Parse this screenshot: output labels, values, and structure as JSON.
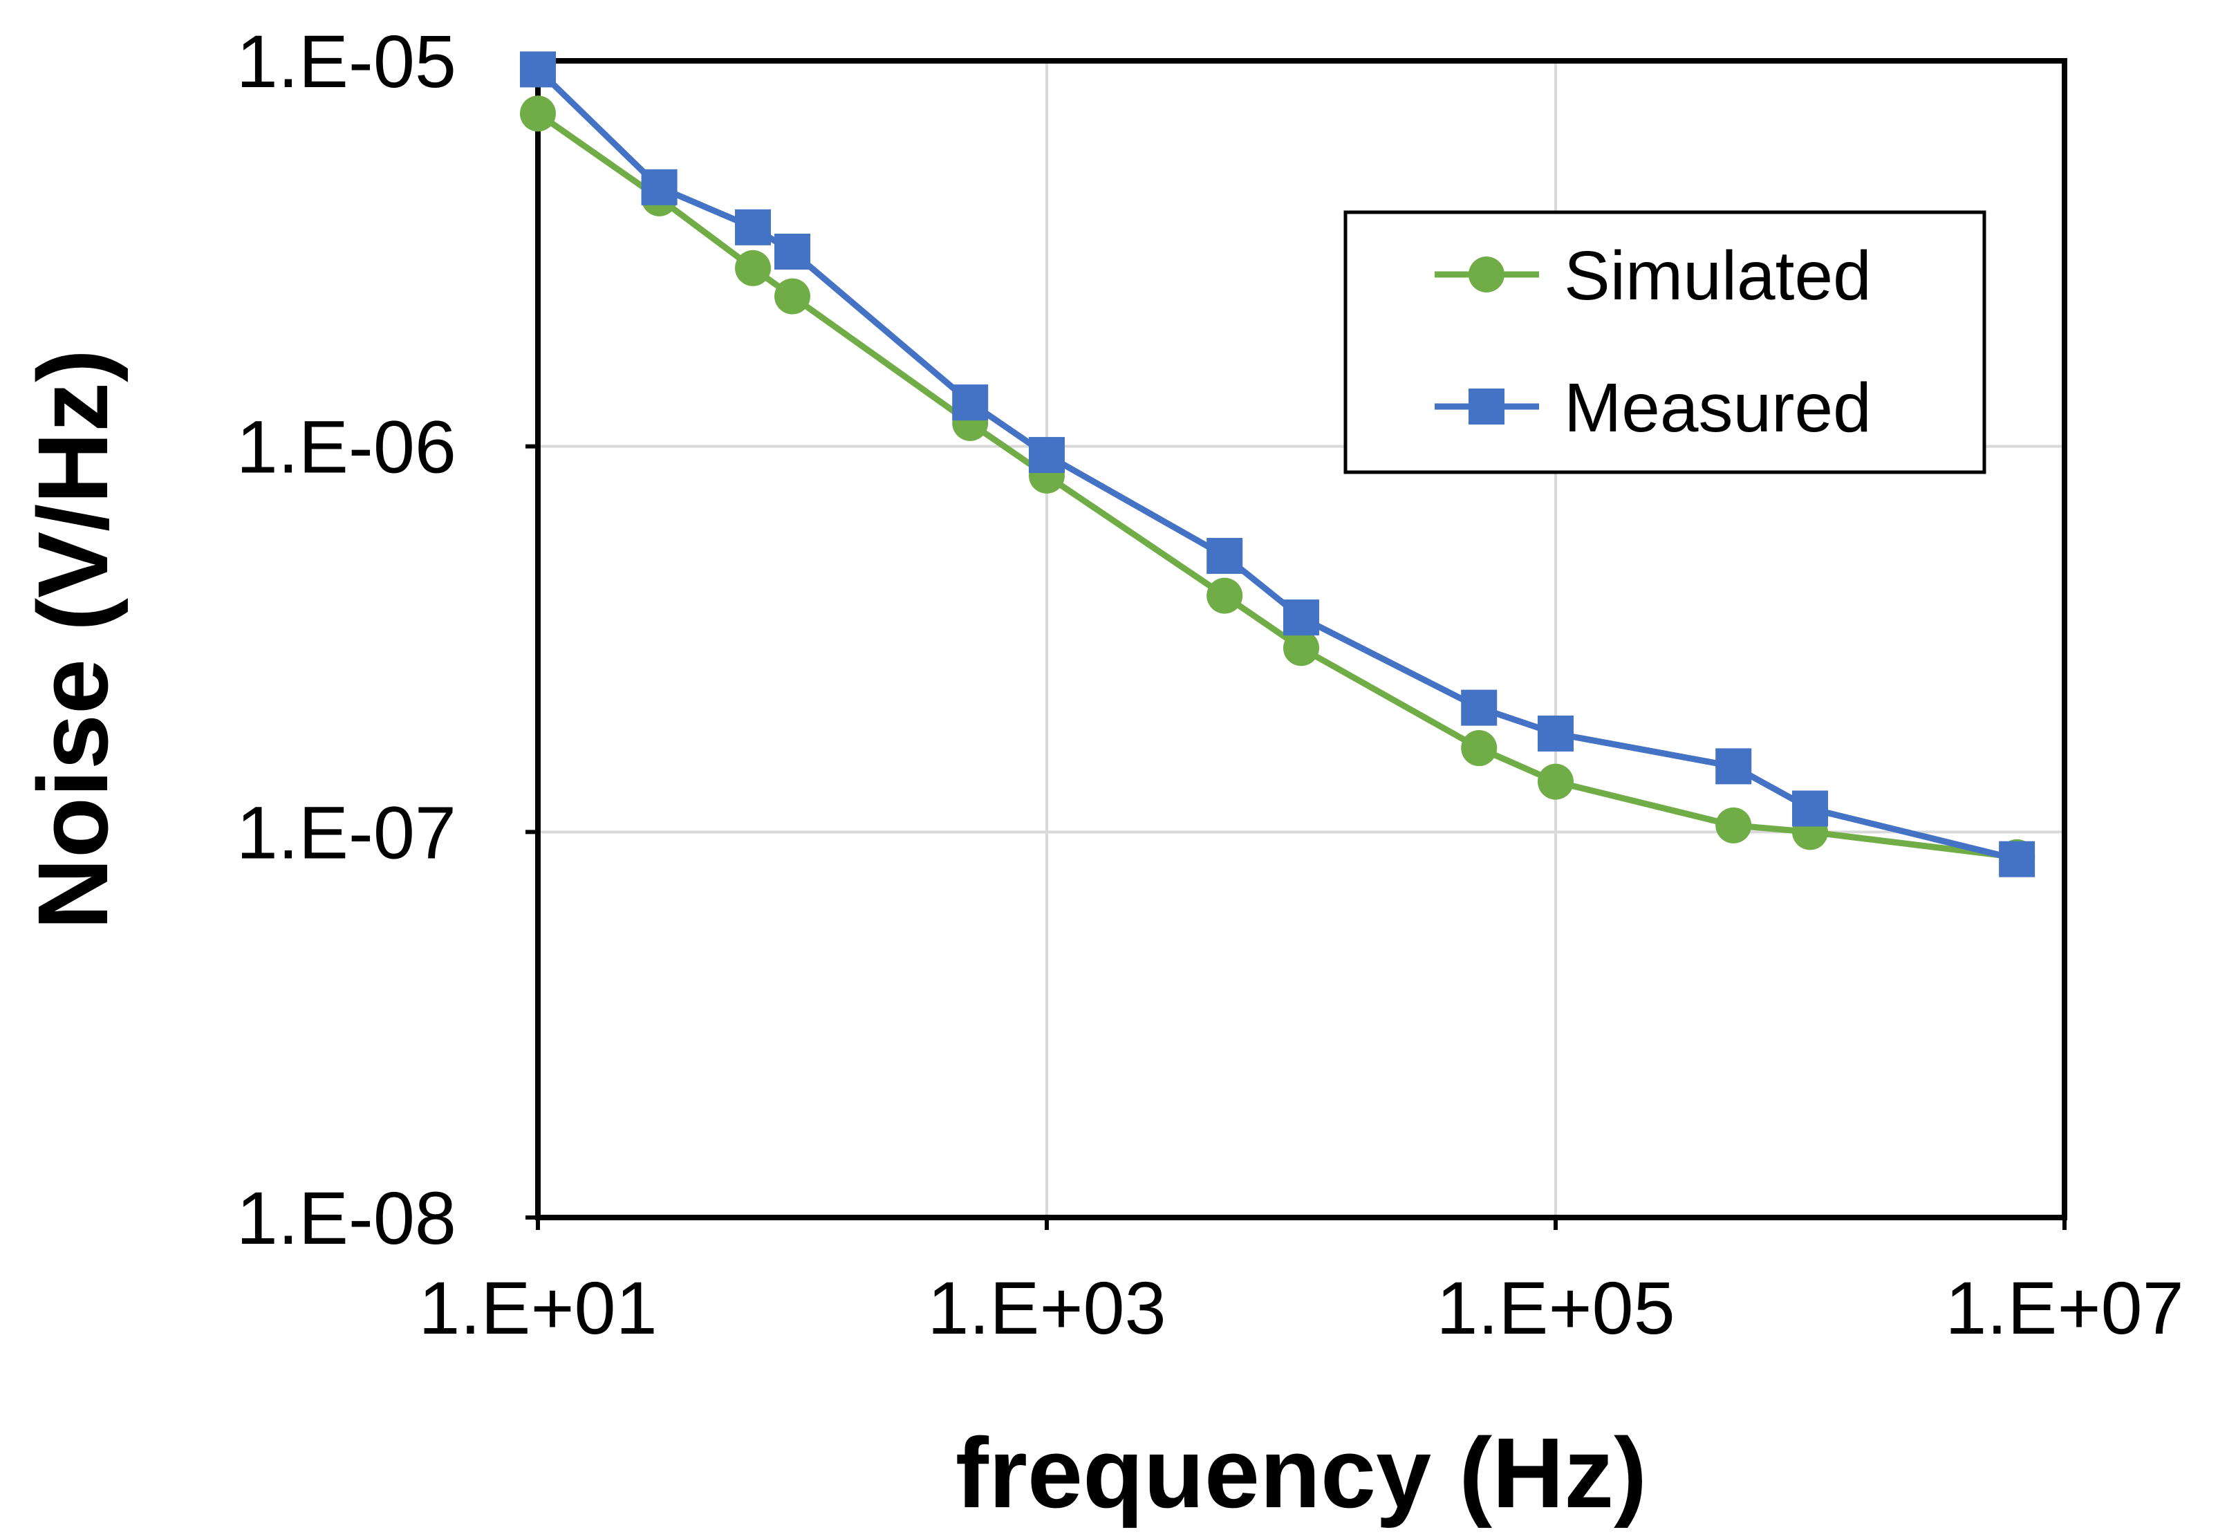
{
  "chart_data": {
    "type": "line",
    "x_scale": "log",
    "y_scale": "log",
    "xlabel": "frequency (Hz)",
    "ylabel": "Noise (V/Hz)",
    "xlim": [
      10,
      10000000
    ],
    "ylim": [
      1e-08,
      1e-05
    ],
    "x_ticks": [
      {
        "value": 10,
        "label": "1.E+01"
      },
      {
        "value": 1000,
        "label": "1.E+03"
      },
      {
        "value": 100000,
        "label": "1.E+05"
      },
      {
        "value": 10000000,
        "label": "1.E+07"
      }
    ],
    "y_ticks": [
      {
        "value": 1e-08,
        "label": "1.E-08"
      },
      {
        "value": 1e-07,
        "label": "1.E-07"
      },
      {
        "value": 1e-06,
        "label": "1.E-06"
      },
      {
        "value": 1e-05,
        "label": "1.E-05"
      }
    ],
    "grid": true,
    "legend_position": "top-right",
    "series": [
      {
        "name": "Simulated",
        "marker": "circle",
        "color": "#70AD47",
        "points": [
          [
            10,
            7.3e-06
          ],
          [
            30,
            4.4e-06
          ],
          [
            70,
            2.9e-06
          ],
          [
            100,
            2.45e-06
          ],
          [
            500,
            1.15e-06
          ],
          [
            1000,
            8.4e-07
          ],
          [
            5000,
            4.1e-07
          ],
          [
            10000,
            3e-07
          ],
          [
            50000,
            1.65e-07
          ],
          [
            100000,
            1.35e-07
          ],
          [
            500000,
            1.04e-07
          ],
          [
            1000000,
            1e-07
          ],
          [
            6500000,
            8.6e-08
          ]
        ]
      },
      {
        "name": "Measured",
        "marker": "square",
        "color": "#4472C4",
        "points": [
          [
            10,
            9.5e-06
          ],
          [
            30,
            4.7e-06
          ],
          [
            70,
            3.7e-06
          ],
          [
            100,
            3.2e-06
          ],
          [
            500,
            1.3e-06
          ],
          [
            1000,
            9.5e-07
          ],
          [
            5000,
            5.2e-07
          ],
          [
            10000,
            3.6e-07
          ],
          [
            50000,
            2.1e-07
          ],
          [
            100000,
            1.8e-07
          ],
          [
            500000,
            1.48e-07
          ],
          [
            1000000,
            1.15e-07
          ],
          [
            6500000,
            8.5e-08
          ]
        ]
      }
    ]
  }
}
